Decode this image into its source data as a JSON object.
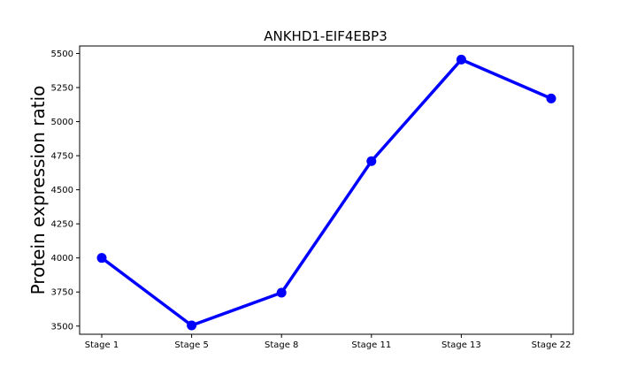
{
  "chart_data": {
    "type": "line",
    "title": "ANKHD1-EIF4EBP3",
    "xlabel": "",
    "ylabel": "Protein expression ratio",
    "categories": [
      "Stage 1",
      "Stage 5",
      "Stage 8",
      "Stage 11",
      "Stage 13",
      "Stage 22"
    ],
    "series": [
      {
        "values": [
          4000,
          3505,
          3745,
          4710,
          5455,
          5170
        ],
        "color": "#0000ff"
      }
    ],
    "yticks": [
      3500,
      3750,
      4000,
      4250,
      4500,
      4750,
      5000,
      5250,
      5500
    ],
    "ylim": [
      3440,
      5555
    ],
    "grid": false,
    "legend": "none"
  }
}
